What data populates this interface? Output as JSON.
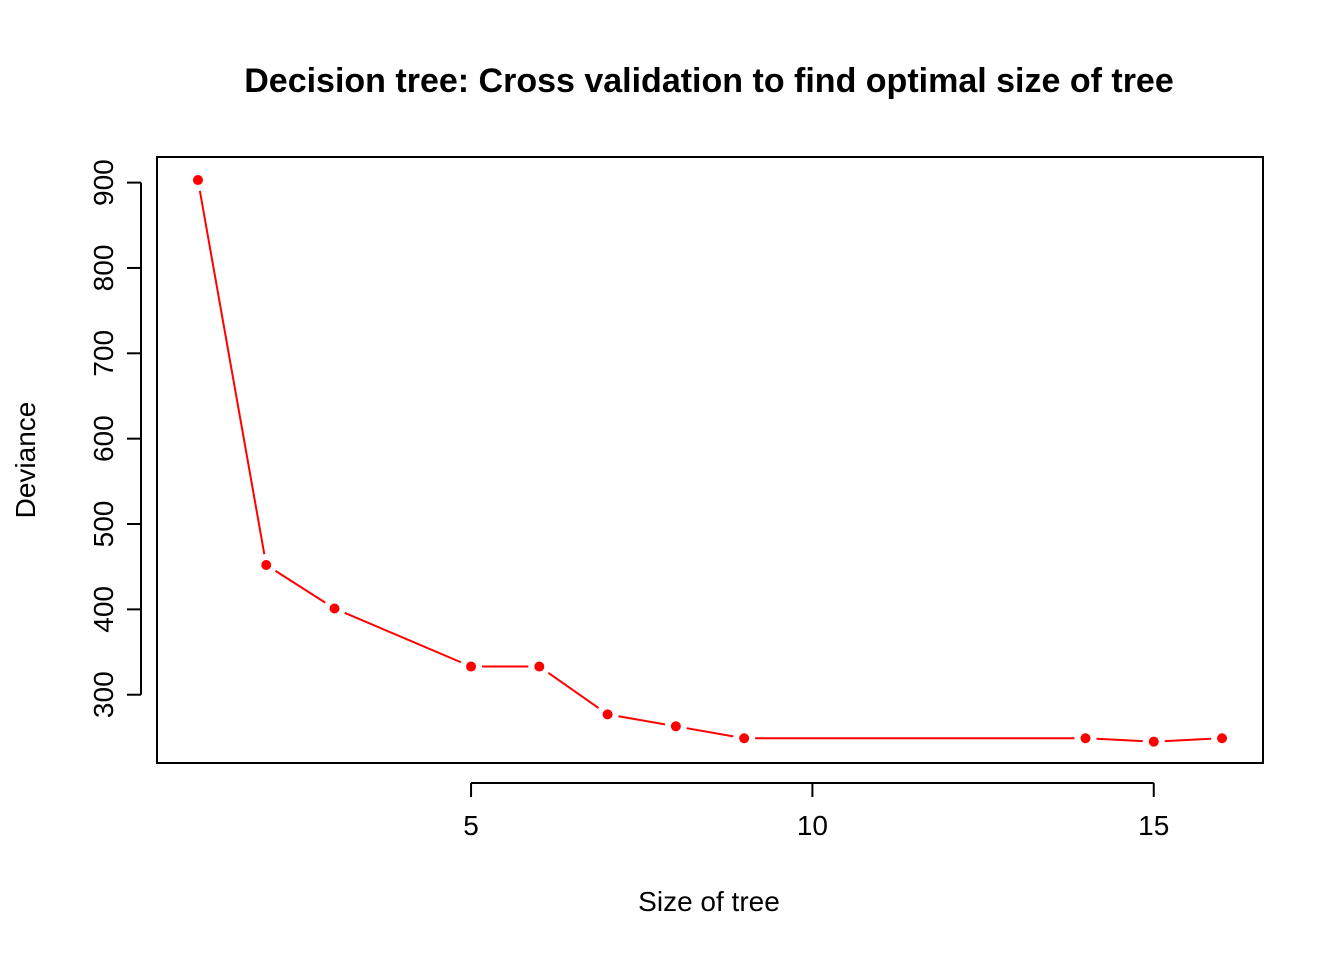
{
  "chart_data": {
    "type": "line",
    "title": "Decision tree: Cross validation to find optimal size of tree",
    "xlabel": "Size of tree",
    "ylabel": "Deviance",
    "x_ticks": [
      5,
      10,
      15
    ],
    "y_ticks": [
      300,
      400,
      500,
      600,
      700,
      800,
      900
    ],
    "xlim": [
      0.4,
      16.6
    ],
    "ylim": [
      220,
      930
    ],
    "grid": false,
    "legend": "none",
    "series": [
      {
        "x": [
          1,
          2,
          3,
          5,
          6,
          7,
          8,
          9,
          14,
          15,
          16
        ],
        "y": [
          903,
          452,
          401,
          333,
          333,
          277,
          263,
          249,
          249,
          245,
          249
        ],
        "color": "#ff0000",
        "marker": "filled-circle",
        "line": "broken (type b)"
      }
    ]
  }
}
